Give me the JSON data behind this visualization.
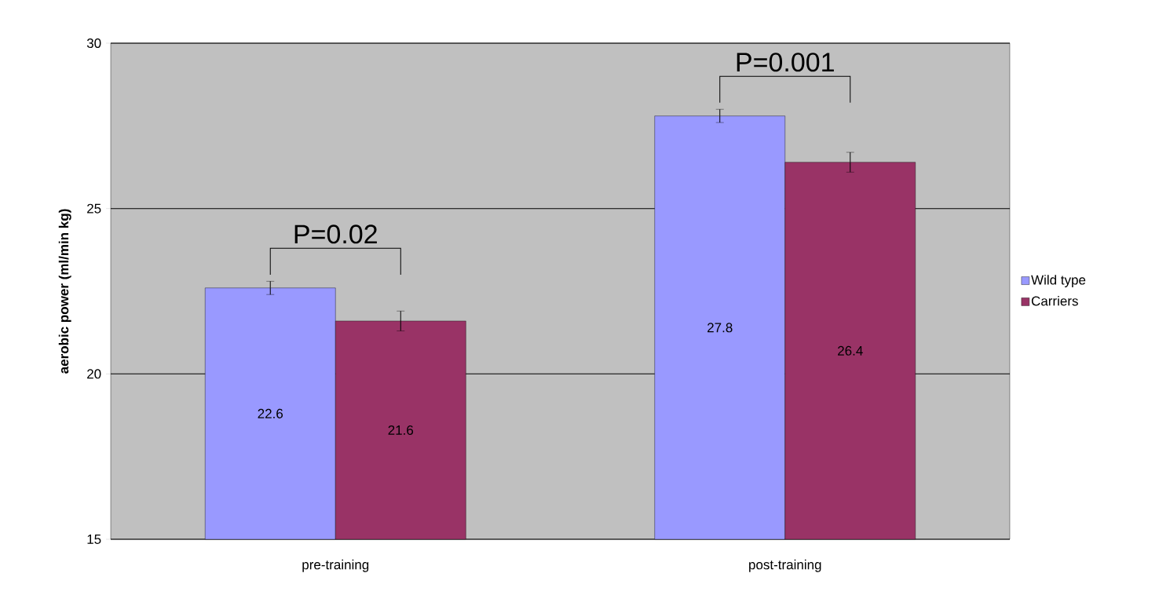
{
  "chart_data": {
    "type": "bar",
    "ylabel": "aerobic power (ml/min kg)",
    "categories": [
      "pre-training",
      "post-training"
    ],
    "series": [
      {
        "name": "Wild type",
        "color": "#9999ff",
        "values": [
          22.6,
          27.8
        ],
        "errors": [
          0.2,
          0.2
        ]
      },
      {
        "name": "Carriers",
        "color": "#993366",
        "values": [
          21.6,
          26.4
        ],
        "errors": [
          0.3,
          0.3
        ]
      }
    ],
    "ylim": [
      15,
      30
    ],
    "yticks": [
      15,
      20,
      25,
      30
    ],
    "grid": "y",
    "legend": "right",
    "data_labels": true,
    "annotations": [
      "P=0.02",
      "P=0.001"
    ]
  }
}
